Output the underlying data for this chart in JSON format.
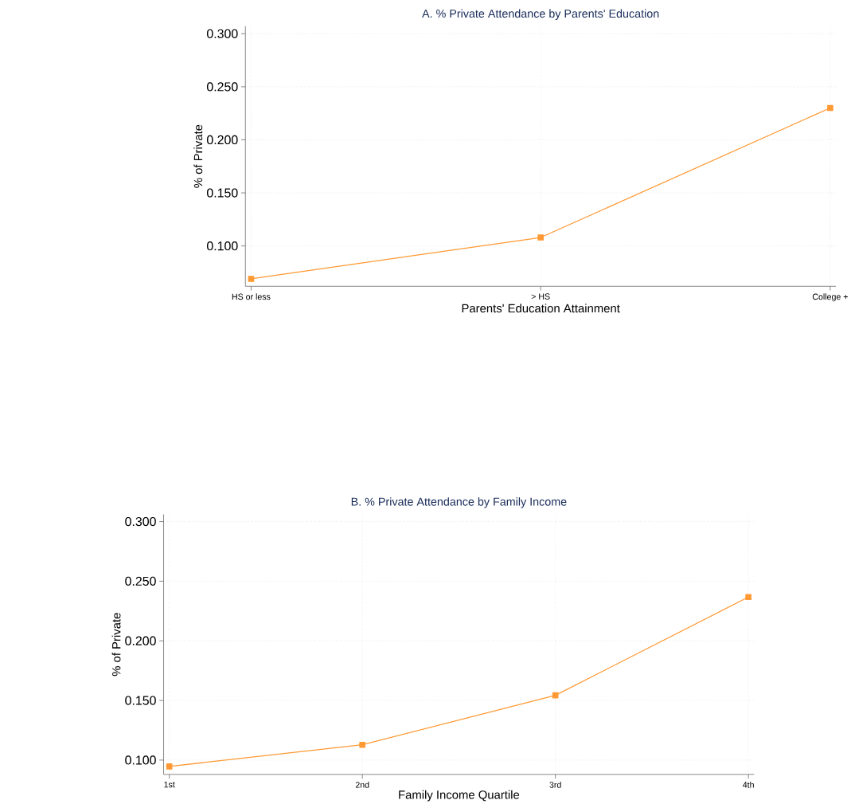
{
  "chart_data": [
    {
      "type": "line",
      "title": "A. % Private Attendance by Parents' Education",
      "xlabel": "Parents' Education Attainment",
      "ylabel": "% of Private",
      "categories": [
        "HS or less",
        "> HS",
        "College  +"
      ],
      "series": [
        {
          "color": "#ff9933",
          "values": [
            0.069,
            0.108,
            0.23
          ]
        }
      ],
      "ylim": [
        0.062,
        0.307
      ],
      "yticks": [
        {
          "value": 0.1,
          "label": "0.100"
        },
        {
          "value": 0.15,
          "label": "0.150"
        },
        {
          "value": 0.2,
          "label": "0.200"
        },
        {
          "value": 0.25,
          "label": "0.250"
        },
        {
          "value": 0.3,
          "label": "0.300"
        }
      ],
      "grid": true,
      "marker": "square",
      "line_style": "solid"
    },
    {
      "type": "line",
      "title": "B. % Private Attendance by Family Income",
      "xlabel": "Family Income Quartile",
      "ylabel": "% of Private",
      "categories": [
        "1st",
        "2nd",
        "3rd",
        "4th"
      ],
      "series": [
        {
          "color": "#ff9933",
          "values": [
            0.0947,
            0.1128,
            0.1543,
            0.2367
          ]
        }
      ],
      "ylim": [
        0.088,
        0.306
      ],
      "yticks": [
        {
          "value": 0.1,
          "label": "0.100"
        },
        {
          "value": 0.15,
          "label": "0.150"
        },
        {
          "value": 0.2,
          "label": "0.200"
        },
        {
          "value": 0.25,
          "label": "0.250"
        },
        {
          "value": 0.3,
          "label": "0.300"
        }
      ],
      "grid": true,
      "marker": "square",
      "line_style": "solid"
    }
  ]
}
